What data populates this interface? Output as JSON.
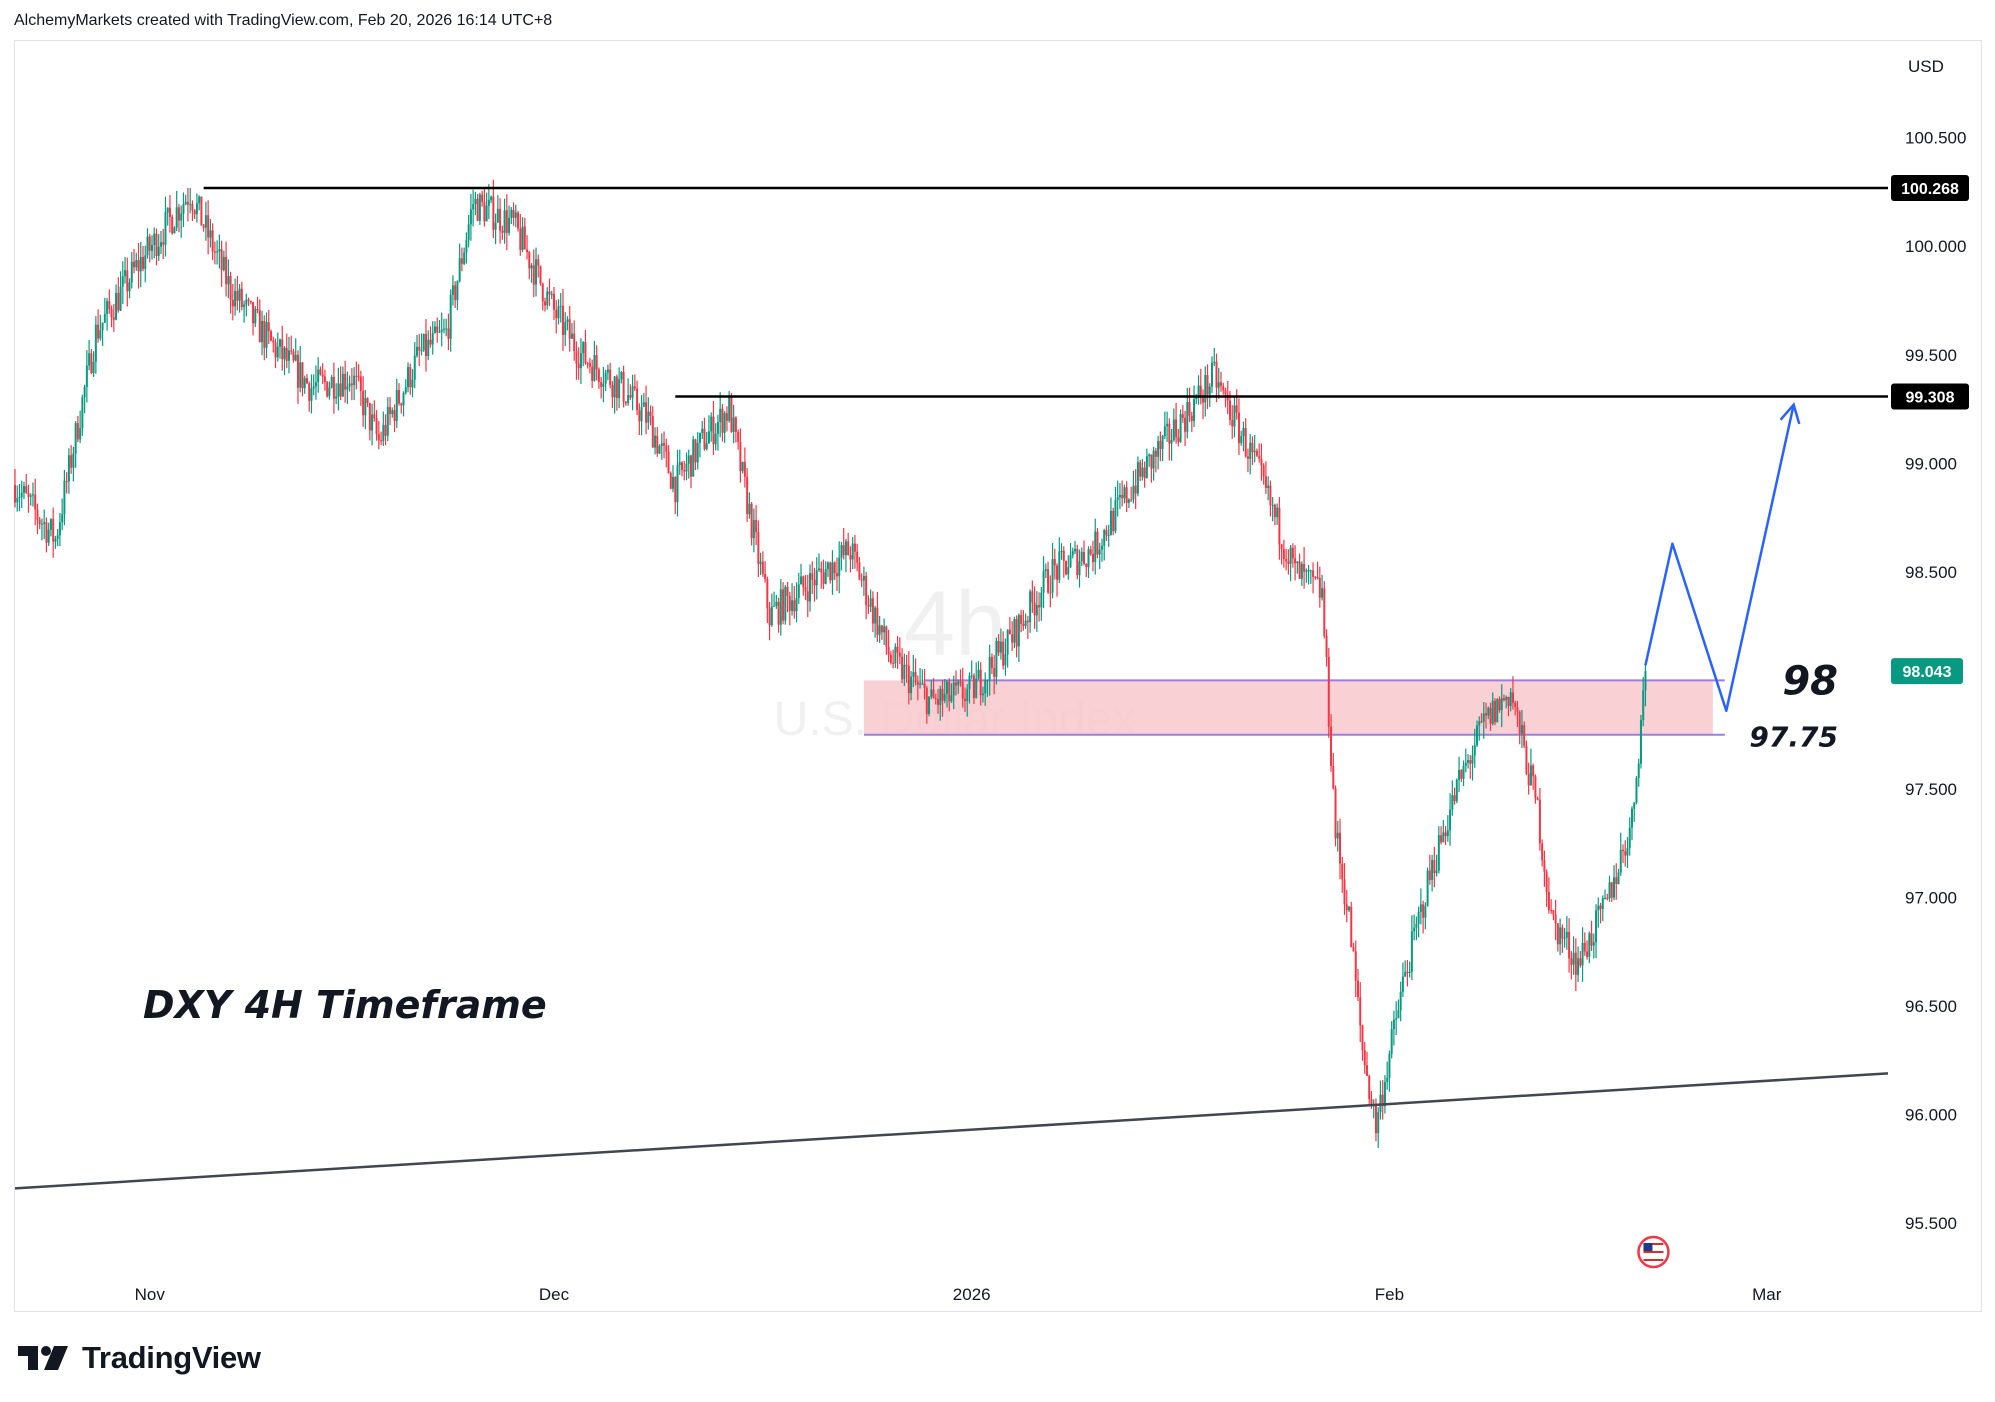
{
  "header": {
    "caption": "AlchemyMarkets created with TradingView.com, Feb 20, 2026 16:14 UTC+8"
  },
  "brand": {
    "name": "TradingView",
    "logo_icon": "tradingview-logo-icon"
  },
  "colors": {
    "bull": "#089981",
    "bear": "#f23645",
    "zone_fill": "#f8c8cc",
    "zone_line": "#9c7fe0",
    "projection": "#2962ff",
    "level_line": "#000000"
  },
  "chart_data": {
    "type": "candlestick",
    "symbol_watermark": "U.S. Dollar Index",
    "interval_watermark": "4h",
    "currency": "USD",
    "ylim": [
      95.1,
      100.95
    ],
    "y_ticks": [
      {
        "value": 100.5,
        "label": "100.500"
      },
      {
        "value": 100.0,
        "label": "100.000"
      },
      {
        "value": 99.5,
        "label": "99.500"
      },
      {
        "value": 99.0,
        "label": "99.000"
      },
      {
        "value": 98.5,
        "label": "98.500"
      },
      {
        "value": 97.5,
        "label": "97.500"
      },
      {
        "value": 97.0,
        "label": "97.000"
      },
      {
        "value": 96.5,
        "label": "96.500"
      },
      {
        "value": 96.0,
        "label": "96.000"
      },
      {
        "value": 95.5,
        "label": "95.500"
      }
    ],
    "x_range": [
      "2025-10-22",
      "2026-03-10"
    ],
    "x_ticks": [
      {
        "date": "2025-11-01",
        "label": "Nov"
      },
      {
        "date": "2025-12-01",
        "label": "Dec"
      },
      {
        "date": "2026-01-01",
        "label": "2026"
      },
      {
        "date": "2026-02-01",
        "label": "Feb"
      },
      {
        "date": "2026-03-01",
        "label": "Mar"
      }
    ],
    "last_price": {
      "value": 98.043,
      "label": "98.043"
    },
    "levels": [
      {
        "value": 100.268,
        "label": "100.268",
        "from": "2025-11-05"
      },
      {
        "value": 99.308,
        "label": "99.308",
        "from": "2025-12-10"
      }
    ],
    "zone": {
      "top": 98.0,
      "bottom": 97.75,
      "from": "2025-12-24",
      "to": "2026-02-25",
      "top_label": "98",
      "bottom_label": "97.75"
    },
    "trendline": [
      {
        "date": "2025-10-22",
        "value": 95.66
      },
      {
        "date": "2026-03-10",
        "value": 96.19
      }
    ],
    "projection": [
      {
        "date": "2026-02-20",
        "value": 98.07
      },
      {
        "date": "2026-02-22",
        "value": 98.63
      },
      {
        "date": "2026-02-26",
        "value": 97.86
      },
      {
        "date": "2026-03-03",
        "value": 99.27
      }
    ],
    "annotation": "DXY 4H Timeframe",
    "price_path": [
      [
        "2025-10-22",
        98.9
      ],
      [
        "2025-10-25",
        98.65
      ],
      [
        "2025-10-28",
        99.6
      ],
      [
        "2025-10-31",
        99.9
      ],
      [
        "2025-11-04",
        100.25
      ],
      [
        "2025-11-07",
        99.8
      ],
      [
        "2025-11-10",
        99.55
      ],
      [
        "2025-11-13",
        99.35
      ],
      [
        "2025-11-16",
        99.4
      ],
      [
        "2025-11-18",
        99.1
      ],
      [
        "2025-11-21",
        99.5
      ],
      [
        "2025-11-23",
        99.6
      ],
      [
        "2025-11-25",
        100.2
      ],
      [
        "2025-11-28",
        100.1
      ],
      [
        "2025-12-01",
        99.7
      ],
      [
        "2025-12-03",
        99.5
      ],
      [
        "2025-12-06",
        99.35
      ],
      [
        "2025-12-08",
        99.2
      ],
      [
        "2025-12-10",
        98.9
      ],
      [
        "2025-12-12",
        99.1
      ],
      [
        "2025-12-14",
        99.25
      ],
      [
        "2025-12-17",
        98.3
      ],
      [
        "2025-12-20",
        98.45
      ],
      [
        "2025-12-23",
        98.6
      ],
      [
        "2025-12-26",
        98.1
      ],
      [
        "2025-12-29",
        97.9
      ],
      [
        "2026-01-01",
        97.95
      ],
      [
        "2026-01-04",
        98.2
      ],
      [
        "2026-01-07",
        98.5
      ],
      [
        "2026-01-10",
        98.6
      ],
      [
        "2026-01-13",
        98.9
      ],
      [
        "2026-01-16",
        99.15
      ],
      [
        "2026-01-19",
        99.4
      ],
      [
        "2026-01-22",
        99.0
      ],
      [
        "2026-01-25",
        98.5
      ],
      [
        "2026-01-27",
        98.4
      ],
      [
        "2026-01-28",
        97.3
      ],
      [
        "2026-01-29",
        96.9
      ],
      [
        "2026-01-30",
        96.3
      ],
      [
        "2026-01-31",
        95.95
      ],
      [
        "2026-02-02",
        96.6
      ],
      [
        "2026-02-04",
        97.1
      ],
      [
        "2026-02-06",
        97.5
      ],
      [
        "2026-02-08",
        97.8
      ],
      [
        "2026-02-10",
        97.95
      ],
      [
        "2026-02-12",
        97.4
      ],
      [
        "2026-02-13",
        96.9
      ],
      [
        "2026-02-15",
        96.7
      ],
      [
        "2026-02-17",
        96.95
      ],
      [
        "2026-02-19",
        97.35
      ],
      [
        "2026-02-20",
        98.043
      ]
    ]
  }
}
